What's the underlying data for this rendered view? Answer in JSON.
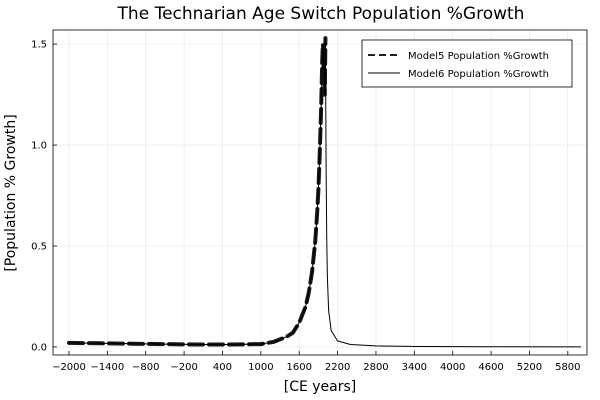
{
  "chart_data": {
    "type": "line",
    "title": "The Technarian Age Switch Population %Growth",
    "xlabel": "[CE years]",
    "ylabel": "[Population % Growth]",
    "xlim": [
      -2250,
      6100
    ],
    "ylim": [
      -0.04,
      1.57
    ],
    "xticks": [
      -2000,
      -1400,
      -800,
      -200,
      400,
      1000,
      1600,
      2200,
      2800,
      3400,
      4000,
      4600,
      5200,
      5800
    ],
    "xtick_labels": [
      "−2000",
      "−1400",
      "−800",
      "−200",
      "400",
      "1000",
      "1600",
      "2200",
      "2800",
      "3400",
      "4000",
      "4600",
      "5200",
      "5800"
    ],
    "yticks": [
      0.0,
      0.5,
      1.0,
      1.5
    ],
    "ytick_labels": [
      "0.0",
      "0.5",
      "1.0",
      "1.5"
    ],
    "grid": true,
    "legend_position": "top-right",
    "series": [
      {
        "name": "Model5 Population %Growth",
        "style": "dashed",
        "color": "#000000",
        "x": [
          -2000,
          -1500,
          -1000,
          -500,
          0,
          500,
          1000,
          1200,
          1400,
          1500,
          1600,
          1700,
          1750,
          1800,
          1850,
          1880,
          1900,
          1920,
          1940,
          1950,
          1960,
          1970,
          1980,
          1990,
          2000,
          2005,
          2010
        ],
        "y": [
          0.02,
          0.018,
          0.016,
          0.014,
          0.012,
          0.012,
          0.014,
          0.025,
          0.05,
          0.07,
          0.12,
          0.2,
          0.27,
          0.37,
          0.52,
          0.66,
          0.78,
          0.95,
          1.15,
          1.28,
          1.42,
          1.5,
          1.45,
          1.35,
          1.25,
          1.4,
          1.53
        ]
      },
      {
        "name": "Model6 Population %Growth",
        "style": "solid",
        "color": "#000000",
        "x": [
          -2000,
          -1500,
          -1000,
          -500,
          0,
          500,
          1000,
          1200,
          1400,
          1500,
          1600,
          1700,
          1750,
          1800,
          1850,
          1880,
          1900,
          1920,
          1940,
          1950,
          1960,
          1970,
          1980,
          1990,
          2000,
          2005,
          2010,
          2015,
          2020,
          2030,
          2040,
          2060,
          2100,
          2200,
          2400,
          2800,
          3500,
          4500,
          6000
        ],
        "y": [
          0.02,
          0.018,
          0.016,
          0.014,
          0.012,
          0.012,
          0.014,
          0.025,
          0.05,
          0.07,
          0.12,
          0.2,
          0.27,
          0.37,
          0.52,
          0.66,
          0.78,
          0.95,
          1.15,
          1.28,
          1.42,
          1.5,
          1.45,
          1.35,
          1.25,
          1.4,
          1.53,
          1.2,
          0.9,
          0.55,
          0.35,
          0.18,
          0.08,
          0.03,
          0.012,
          0.005,
          0.002,
          0.001,
          0.0
        ]
      }
    ]
  }
}
